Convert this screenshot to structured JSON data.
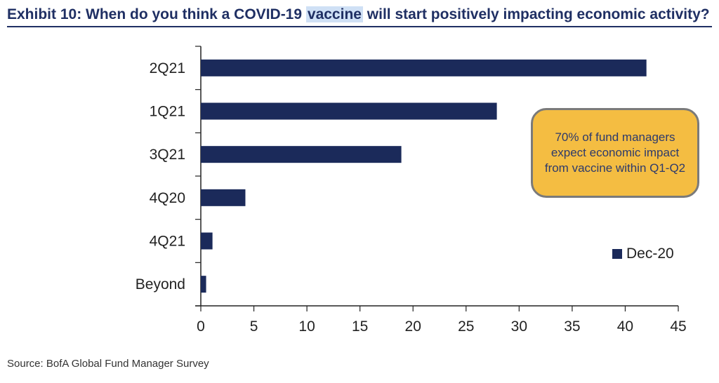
{
  "title_before": "Exhibit 10: When do you think a COVID-19 ",
  "title_highlight": "vaccine",
  "title_after": " will start positively impacting economic activity?",
  "callout_text": "70% of fund managers expect economic impact from vaccine within Q1-Q2",
  "source": "Source: BofA Global Fund Manager Survey",
  "colors": {
    "bar": "#1b2a5a",
    "title": "#1f2f63",
    "callout_fill": "#f4bd42",
    "highlight": "#cfe0f5"
  },
  "chart_data": {
    "type": "bar",
    "orientation": "horizontal",
    "categories": [
      "2Q21",
      "1Q21",
      "3Q21",
      "4Q20",
      "4Q21",
      "Beyond"
    ],
    "series": [
      {
        "name": "Dec-20",
        "values": [
          42,
          27.9,
          18.9,
          4.2,
          1.1,
          0.5
        ]
      }
    ],
    "xlim": [
      0,
      45
    ],
    "xticks": [
      0,
      5,
      10,
      15,
      20,
      25,
      30,
      35,
      40,
      45
    ],
    "grid": false,
    "legend_position": "right"
  }
}
